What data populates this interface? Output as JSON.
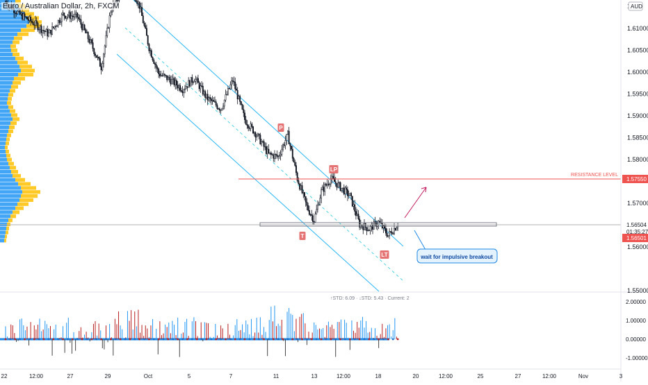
{
  "header": {
    "title": "Euro / Australian Dollar, 2h, FXCM",
    "currency": "AUD"
  },
  "chart_data": [
    {
      "type": "candlestick",
      "title": "Euro / Australian Dollar, 2h, FXCM",
      "ylim": [
        1.545,
        1.62
      ],
      "y_ticks": [
        "1.61000",
        "1.60500",
        "1.60000",
        "1.59500",
        "1.59000",
        "1.58500",
        "1.58000",
        "1.57000",
        "1.56000",
        "1.55000"
      ],
      "y_axis_top_label": "1.6",
      "x_ticks": [
        "22",
        "12:00",
        "27",
        "29",
        "Oct",
        "5",
        "7",
        "11",
        "13",
        "12:00",
        "18",
        "20",
        "12:00",
        "25",
        "27",
        "12:00",
        "Nov",
        "3"
      ],
      "price_labels": [
        {
          "value": "1.57550",
          "color": "#ef5350"
        },
        {
          "value": "1.56504",
          "color": "#ffffff"
        },
        {
          "value": "01:35:27",
          "color": "#ffffff"
        },
        {
          "value": "1.56501",
          "color": "#ef5350"
        }
      ],
      "resistance": {
        "label": "RESISTANCE LEVEL",
        "price": 1.5755,
        "color": "#ef5350"
      },
      "support_zone": {
        "price": 1.565
      },
      "channel": {
        "upper": [
          [
            0,
            1.6245
          ],
          [
            330,
            1.5625
          ]
        ],
        "lower": [
          [
            0,
            1.6025
          ],
          [
            330,
            1.541
          ]
        ]
      },
      "markers": [
        {
          "label": "P",
          "bar": 231,
          "price": 1.5872
        },
        {
          "label": "LP",
          "bar": 278,
          "price": 1.5778
        },
        {
          "label": "T",
          "bar": 254,
          "price": 1.5625
        },
        {
          "label": "LT",
          "bar": 320,
          "price": 1.558
        }
      ],
      "annotation": "wait for impulsive breakout",
      "close_path": [
        [
          0,
          1.616
        ],
        [
          12,
          1.613
        ],
        [
          24,
          1.611
        ],
        [
          36,
          1.6085
        ],
        [
          48,
          1.613
        ],
        [
          60,
          1.6125
        ],
        [
          72,
          1.606
        ],
        [
          80,
          1.601
        ],
        [
          88,
          1.614
        ],
        [
          96,
          1.618
        ],
        [
          104,
          1.62
        ],
        [
          112,
          1.615
        ],
        [
          120,
          1.6055
        ],
        [
          128,
          1.5995
        ],
        [
          138,
          1.598
        ],
        [
          148,
          1.596
        ],
        [
          158,
          1.5985
        ],
        [
          168,
          1.594
        ],
        [
          180,
          1.5915
        ],
        [
          190,
          1.598
        ],
        [
          200,
          1.589
        ],
        [
          210,
          1.5855
        ],
        [
          220,
          1.581
        ],
        [
          228,
          1.5805
        ],
        [
          236,
          1.5855
        ],
        [
          244,
          1.5755
        ],
        [
          252,
          1.569
        ],
        [
          258,
          1.566
        ],
        [
          264,
          1.5725
        ],
        [
          272,
          1.5755
        ],
        [
          280,
          1.5735
        ],
        [
          288,
          1.5715
        ],
        [
          296,
          1.565
        ],
        [
          304,
          1.564
        ],
        [
          312,
          1.5655
        ],
        [
          320,
          1.5625
        ],
        [
          328,
          1.565
        ]
      ],
      "volume_profile": {
        "bins": 60,
        "up": [
          22,
          26,
          30,
          35,
          40,
          42,
          38,
          30,
          25,
          20,
          18,
          15,
          16,
          18,
          22,
          25,
          28,
          30,
          26,
          20,
          18,
          16,
          14,
          12,
          11,
          10,
          12,
          14,
          16,
          18,
          15,
          13,
          12,
          10,
          9,
          8,
          7,
          8,
          9,
          10,
          12,
          14,
          16,
          18,
          22,
          26,
          30,
          32,
          30,
          28,
          25,
          22,
          18,
          15,
          12,
          10,
          9,
          8,
          7,
          6
        ],
        "down": [
          8,
          10,
          12,
          14,
          16,
          18,
          22,
          20,
          16,
          12,
          10,
          8,
          9,
          10,
          12,
          15,
          18,
          20,
          22,
          16,
          12,
          10,
          8,
          7,
          6,
          6,
          7,
          8,
          9,
          10,
          9,
          8,
          7,
          6,
          5,
          5,
          4,
          5,
          6,
          7,
          8,
          9,
          10,
          12,
          14,
          18,
          22,
          26,
          24,
          20,
          16,
          12,
          10,
          8,
          6,
          5,
          4,
          4,
          3,
          3
        ],
        "colors": {
          "up": "#42a5f5",
          "down": "#ffca28"
        }
      }
    },
    {
      "type": "histogram",
      "title": "↑STD: 6.09 · ↓STD: 5.43 · Current: 2",
      "ylim": [
        -1.3,
        2.2
      ],
      "y_ticks": [
        "2.00000",
        "1.00000",
        "0.00000",
        "-1.00000"
      ],
      "colors": {
        "up": "#2196f3",
        "down": "#b71c1c"
      }
    }
  ]
}
